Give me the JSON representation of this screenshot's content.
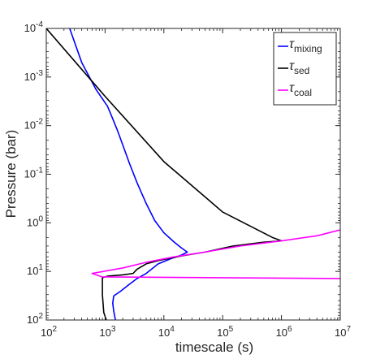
{
  "chart_data": {
    "type": "line",
    "xlabel": "timescale (s)",
    "ylabel": "Pressure (bar)",
    "xscale": "log",
    "yscale": "log",
    "yaxis_reversed": true,
    "xlim": [
      100,
      10000000
    ],
    "ylim": [
      0.0001,
      100
    ],
    "x_ticks": [
      100,
      1000,
      10000,
      100000,
      1000000,
      10000000
    ],
    "y_ticks": [
      0.0001,
      0.001,
      0.01,
      0.1,
      1,
      10,
      100
    ],
    "x_tick_labels": [
      {
        "base": "10",
        "exp": "2"
      },
      {
        "base": "10",
        "exp": "3"
      },
      {
        "base": "10",
        "exp": "4"
      },
      {
        "base": "10",
        "exp": "5"
      },
      {
        "base": "10",
        "exp": "6"
      },
      {
        "base": "10",
        "exp": "7"
      }
    ],
    "y_tick_labels": [
      {
        "base": "10",
        "exp": "-4"
      },
      {
        "base": "10",
        "exp": "-3"
      },
      {
        "base": "10",
        "exp": "-2"
      },
      {
        "base": "10",
        "exp": "-1"
      },
      {
        "base": "10",
        "exp": "0"
      },
      {
        "base": "10",
        "exp": "1"
      },
      {
        "base": "10",
        "exp": "2"
      }
    ],
    "grid": false,
    "legend_position": "top-right",
    "series": [
      {
        "name": "mixing",
        "symbol": "τ",
        "color": "#0000ff",
        "points": [
          [
            250,
            0.0001
          ],
          [
            400,
            0.0005
          ],
          [
            700,
            0.0018
          ],
          [
            1100,
            0.004
          ],
          [
            1300,
            0.0065
          ],
          [
            1600,
            0.012
          ],
          [
            2000,
            0.025
          ],
          [
            2600,
            0.06
          ],
          [
            3500,
            0.15
          ],
          [
            5000,
            0.4
          ],
          [
            7000,
            0.9
          ],
          [
            10000,
            1.6
          ],
          [
            15000,
            2.5
          ],
          [
            20000,
            3.3
          ],
          [
            25000,
            4.0
          ],
          [
            20000,
            4.6
          ],
          [
            13000,
            5.5
          ],
          [
            8000,
            7.0
          ],
          [
            5000,
            11.0
          ],
          [
            3500,
            14.0
          ],
          [
            2500,
            19.0
          ],
          [
            1800,
            26.0
          ],
          [
            1400,
            32.0
          ],
          [
            1350,
            45.0
          ],
          [
            1400,
            65.0
          ],
          [
            1500,
            100.0
          ]
        ]
      },
      {
        "name": "sed",
        "symbol": "τ",
        "color": "#000000",
        "points": [
          [
            100,
            0.0001
          ],
          [
            1000,
            0.0025
          ],
          [
            10000,
            0.055
          ],
          [
            100000,
            0.6
          ],
          [
            700000,
            2.0
          ],
          [
            1000000,
            2.35
          ],
          [
            500000,
            2.5
          ],
          [
            150000,
            3.0
          ],
          [
            50000,
            4.0
          ],
          [
            20000,
            4.8
          ],
          [
            8000,
            6.0
          ],
          [
            5000,
            7.0
          ],
          [
            3500,
            9.0
          ],
          [
            3000,
            11.0
          ],
          [
            2000,
            11.8
          ],
          [
            1100,
            12.5
          ],
          [
            900,
            13.5
          ],
          [
            900,
            30.0
          ],
          [
            950,
            70.0
          ],
          [
            1050,
            100.0
          ]
        ]
      },
      {
        "name": "coal",
        "symbol": "τ",
        "color": "#ff00ff",
        "points": [
          [
            10000000,
            1.4
          ],
          [
            4000000,
            1.85
          ],
          [
            1000000,
            2.35
          ],
          [
            200000,
            3.0
          ],
          [
            50000,
            4.0
          ],
          [
            15000,
            5.0
          ],
          [
            5000,
            6.5
          ],
          [
            2000,
            8.5
          ],
          [
            600,
            11.0
          ],
          [
            900,
            13.0
          ],
          [
            10000000,
            14.0
          ]
        ]
      }
    ]
  }
}
